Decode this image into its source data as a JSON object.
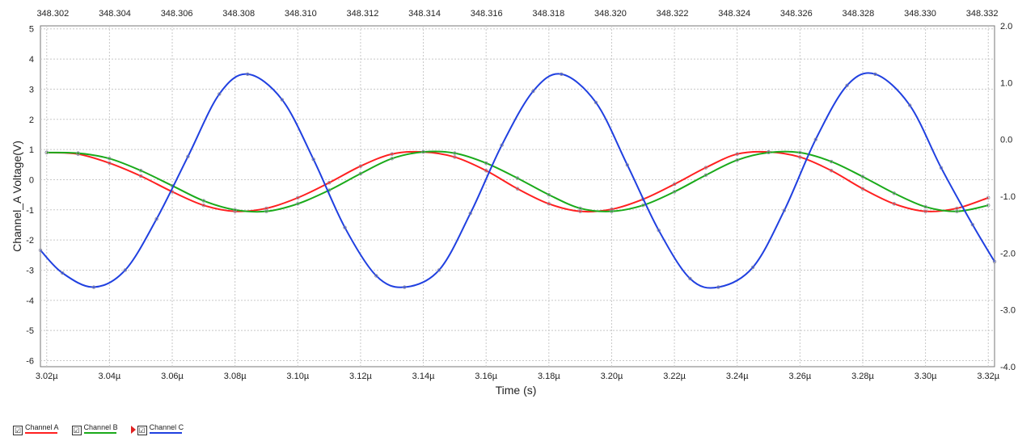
{
  "chart_data": {
    "type": "line",
    "xlabel": "Time (s)",
    "ylabel": "Channel_A Voltage(V)",
    "xlim": [
      3.018,
      3.322
    ],
    "ylim": [
      -6.2,
      5.1
    ],
    "y2lim": [
      -4.0,
      2.0
    ],
    "top_xlim": [
      348.3016,
      348.3324
    ],
    "grid": true,
    "x_ticks": [
      "3.02µ",
      "3.04µ",
      "3.06µ",
      "3.08µ",
      "3.10µ",
      "3.12µ",
      "3.14µ",
      "3.16µ",
      "3.18µ",
      "3.20µ",
      "3.22µ",
      "3.24µ",
      "3.26µ",
      "3.28µ",
      "3.30µ",
      "3.32µ"
    ],
    "x_tick_values": [
      3.02,
      3.04,
      3.06,
      3.08,
      3.1,
      3.12,
      3.14,
      3.16,
      3.18,
      3.2,
      3.22,
      3.24,
      3.26,
      3.28,
      3.3,
      3.32
    ],
    "y_ticks": [
      "5",
      "4",
      "3",
      "2",
      "1",
      "0",
      "-1",
      "-2",
      "-3",
      "-4",
      "-5",
      "-6"
    ],
    "y_tick_values": [
      5,
      4,
      3,
      2,
      1,
      0,
      -1,
      -2,
      -3,
      -4,
      -5,
      -6
    ],
    "y2_ticks": [
      "2.0",
      "1.0",
      "0.0",
      "-1.0",
      "-2.0",
      "-3.0",
      "-4.0"
    ],
    "y2_tick_values": [
      2,
      1,
      0,
      -1,
      -2,
      -3,
      -4
    ],
    "top_ticks": [
      "348.302",
      "348.304",
      "348.306",
      "348.308",
      "348.310",
      "348.312",
      "348.314",
      "348.316",
      "348.318",
      "348.320",
      "348.322",
      "348.324",
      "348.326",
      "348.328",
      "348.330",
      "348.332"
    ],
    "top_tick_values": [
      348.302,
      348.304,
      348.306,
      348.308,
      348.31,
      348.312,
      348.314,
      348.316,
      348.318,
      348.32,
      348.322,
      348.324,
      348.326,
      348.328,
      348.33,
      348.332
    ],
    "series": [
      {
        "name": "Channel A",
        "color": "#ff2020",
        "axis": "left",
        "x": [
          3.02,
          3.03,
          3.04,
          3.05,
          3.06,
          3.07,
          3.08,
          3.09,
          3.1,
          3.11,
          3.12,
          3.13,
          3.14,
          3.15,
          3.16,
          3.17,
          3.18,
          3.19,
          3.2,
          3.21,
          3.22,
          3.23,
          3.24,
          3.25,
          3.26,
          3.27,
          3.28,
          3.29,
          3.3,
          3.31,
          3.32
        ],
        "values": [
          0.9,
          0.85,
          0.55,
          0.12,
          -0.4,
          -0.85,
          -1.05,
          -0.95,
          -0.6,
          -0.1,
          0.45,
          0.85,
          0.92,
          0.75,
          0.3,
          -0.3,
          -0.8,
          -1.05,
          -0.98,
          -0.65,
          -0.15,
          0.4,
          0.85,
          0.92,
          0.75,
          0.3,
          -0.3,
          -0.8,
          -1.05,
          -0.95,
          -0.6
        ]
      },
      {
        "name": "Channel B",
        "color": "#1aaa1a",
        "axis": "left",
        "x": [
          3.02,
          3.03,
          3.04,
          3.05,
          3.06,
          3.07,
          3.08,
          3.09,
          3.1,
          3.11,
          3.12,
          3.13,
          3.14,
          3.15,
          3.16,
          3.17,
          3.18,
          3.19,
          3.2,
          3.21,
          3.22,
          3.23,
          3.24,
          3.25,
          3.26,
          3.27,
          3.28,
          3.29,
          3.3,
          3.31,
          3.32
        ],
        "values": [
          0.9,
          0.88,
          0.7,
          0.3,
          -0.2,
          -0.7,
          -1.0,
          -1.05,
          -0.8,
          -0.35,
          0.2,
          0.7,
          0.92,
          0.88,
          0.55,
          0.05,
          -0.5,
          -0.95,
          -1.05,
          -0.85,
          -0.4,
          0.15,
          0.65,
          0.9,
          0.9,
          0.6,
          0.1,
          -0.45,
          -0.9,
          -1.05,
          -0.85
        ]
      },
      {
        "name": "Channel C",
        "color": "#2040e0",
        "axis": "right",
        "x": [
          3.018,
          3.025,
          3.035,
          3.045,
          3.055,
          3.065,
          3.075,
          3.084,
          3.095,
          3.105,
          3.115,
          3.125,
          3.134,
          3.145,
          3.155,
          3.165,
          3.175,
          3.184,
          3.195,
          3.205,
          3.215,
          3.225,
          3.234,
          3.245,
          3.255,
          3.265,
          3.275,
          3.284,
          3.295,
          3.305,
          3.315,
          3.322
        ],
        "values": [
          -1.95,
          -2.35,
          -2.6,
          -2.3,
          -1.4,
          -0.3,
          0.8,
          1.15,
          0.7,
          -0.35,
          -1.55,
          -2.4,
          -2.6,
          -2.3,
          -1.3,
          -0.1,
          0.85,
          1.15,
          0.65,
          -0.45,
          -1.6,
          -2.45,
          -2.6,
          -2.25,
          -1.25,
          0.0,
          0.95,
          1.15,
          0.6,
          -0.5,
          -1.5,
          -2.15
        ]
      }
    ]
  },
  "legend": [
    {
      "label": "Channel A",
      "color": "#ff2020",
      "checked": "☑"
    },
    {
      "label": "Channel B",
      "color": "#1aaa1a",
      "checked": "☑"
    },
    {
      "label": "Channel C",
      "color": "#2040e0",
      "checked": "☑"
    }
  ]
}
